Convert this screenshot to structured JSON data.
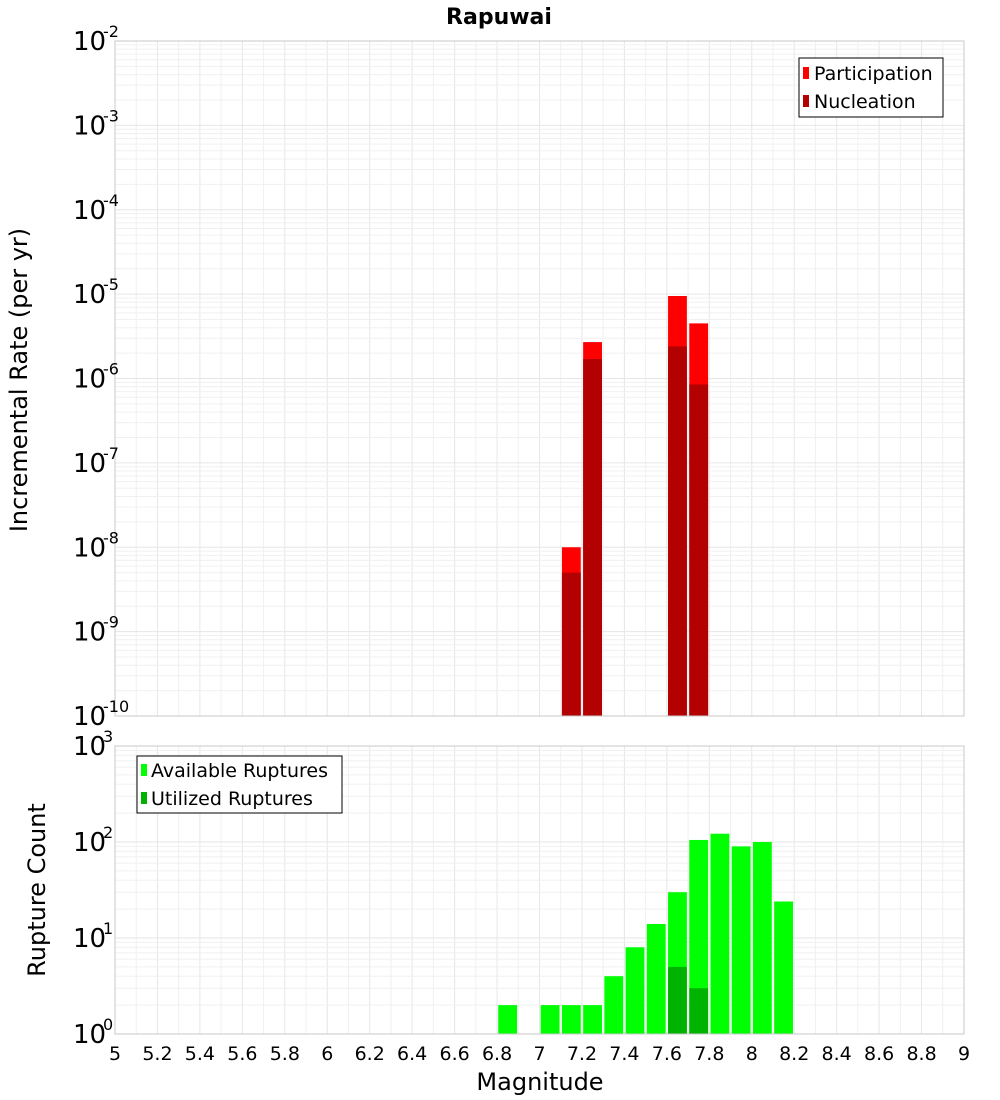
{
  "chart_data": [
    {
      "type": "bar",
      "title": "Rapuwai",
      "xlabel": "Magnitude",
      "ylabel": "Incremental Rate (per yr)",
      "yscale": "log",
      "xlim": [
        5,
        9
      ],
      "ylim_exponents": [
        -10,
        -2
      ],
      "grid": true,
      "legend_position": "top-right",
      "bin_width": 0.1,
      "series": [
        {
          "name": "Participation",
          "color": "#ff0000",
          "points": [
            {
              "x": 7.15,
              "y": 1e-08
            },
            {
              "x": 7.25,
              "y": 2.7e-06
            },
            {
              "x": 7.65,
              "y": 9.5e-06
            },
            {
              "x": 7.75,
              "y": 4.5e-06
            }
          ]
        },
        {
          "name": "Nucleation",
          "color": "#b30000",
          "points": [
            {
              "x": 7.15,
              "y": 5e-09
            },
            {
              "x": 7.25,
              "y": 1.7e-06
            },
            {
              "x": 7.65,
              "y": 2.4e-06
            },
            {
              "x": 7.75,
              "y": 8.5e-07
            }
          ]
        }
      ]
    },
    {
      "type": "bar",
      "title": "",
      "xlabel": "Magnitude",
      "ylabel": "Rupture Count",
      "yscale": "log",
      "xlim": [
        5,
        9
      ],
      "ylim_exponents": [
        0,
        3
      ],
      "grid": true,
      "legend_position": "top-left",
      "bin_width": 0.1,
      "series": [
        {
          "name": "Available Ruptures",
          "color": "#00ff00",
          "points": [
            {
              "x": 6.85,
              "y": 2
            },
            {
              "x": 7.05,
              "y": 2
            },
            {
              "x": 7.15,
              "y": 2
            },
            {
              "x": 7.25,
              "y": 2
            },
            {
              "x": 7.35,
              "y": 4
            },
            {
              "x": 7.45,
              "y": 8
            },
            {
              "x": 7.55,
              "y": 14
            },
            {
              "x": 7.65,
              "y": 30
            },
            {
              "x": 7.75,
              "y": 105
            },
            {
              "x": 7.85,
              "y": 122
            },
            {
              "x": 7.95,
              "y": 90
            },
            {
              "x": 8.05,
              "y": 100
            },
            {
              "x": 8.15,
              "y": 24
            }
          ]
        },
        {
          "name": "Utilized Ruptures",
          "color": "#00b300",
          "points": [
            {
              "x": 7.15,
              "y": 1
            },
            {
              "x": 7.25,
              "y": 1
            },
            {
              "x": 7.65,
              "y": 5
            },
            {
              "x": 7.75,
              "y": 3
            }
          ]
        }
      ]
    }
  ],
  "x_ticks": [
    "5",
    "5.2",
    "5.4",
    "5.6",
    "5.8",
    "6",
    "6.2",
    "6.4",
    "6.6",
    "6.8",
    "7",
    "7.2",
    "7.4",
    "7.6",
    "7.8",
    "8",
    "8.2",
    "8.4",
    "8.6",
    "8.8",
    "9"
  ],
  "y_ticks_top": {
    "base": "10",
    "exponents": [
      "-2",
      "-3",
      "-4",
      "-5",
      "-6",
      "-7",
      "-8",
      "-9",
      "-10"
    ]
  },
  "y_ticks_bottom": {
    "base": "10",
    "exponents": [
      "3",
      "2",
      "1",
      "0"
    ]
  }
}
